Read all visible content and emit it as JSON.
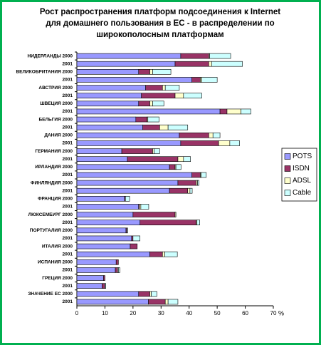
{
  "chart_data": {
    "type": "bar",
    "orientation": "horizontal",
    "stacked": true,
    "title": [
      "Рост распространения платформ подсоединения к Internet",
      "для домашнего пользования в ЕС - в распределении по",
      "широкополосным платформам"
    ],
    "xlabel": "%",
    "categories": [
      "НИДЕРЛАНДЫ 2000",
      "2001",
      "ВЕЛИКОБРИТАНИЯ 2000",
      "2001",
      "АВСТРИЯ 2000",
      "2001",
      "ШВЕЦИЯ 2000",
      "2001",
      "БЕЛЬГИЯ 2000",
      "2001",
      "ДАНИЯ 2000",
      "2001",
      "ГЕРМАНИЯ 2000",
      "2001",
      "ИРЛАНДИЯ 2000",
      "2001",
      "ФИНЛЯНДИЯ 2000",
      "2001",
      "ФРАНЦИЯ 2000",
      "2001",
      "ЛЮКСЕМБУРГ 2000",
      "2001",
      "ПОРТУГАЛИЯ 2000",
      "2001",
      "ИТАЛИЯ 2000",
      "2001",
      "ИСПАНИЯ 2000",
      "2001",
      "ГРЕЦИЯ 2000",
      "2001",
      "ЗНАЧЕНИЕ ЕС 2000",
      "2001"
    ],
    "series": [
      {
        "name": "POTS",
        "color": "#9999ff",
        "values": [
          37,
          35,
          22,
          41,
          24.5,
          23,
          22,
          51,
          21,
          23.5,
          36.5,
          37,
          16,
          18,
          33,
          41,
          36,
          33,
          17,
          22,
          20,
          22.5,
          17.5,
          19.5,
          19,
          26,
          14,
          13.7,
          9.5,
          9,
          22,
          25.5
        ]
      },
      {
        "name": "ISDN",
        "color": "#993366",
        "values": [
          10,
          12,
          4,
          3,
          6,
          12,
          4,
          2.5,
          4,
          6,
          10.5,
          13.5,
          11,
          18,
          2,
          3,
          6.5,
          6.5,
          0.3,
          0.3,
          15,
          20,
          0.3,
          0.5,
          2.5,
          4.5,
          0.8,
          0.8,
          0.5,
          1,
          4,
          6
        ]
      },
      {
        "name": "ADSL",
        "color": "#ffffcc",
        "values": [
          0.3,
          1,
          1,
          0.5,
          1,
          3,
          1,
          5,
          0.3,
          3,
          1.5,
          4,
          0.5,
          2,
          0.3,
          0.3,
          0.5,
          0.8,
          0,
          0.5,
          0.3,
          0.3,
          0,
          0,
          0,
          0.8,
          0,
          0.3,
          0,
          0,
          0.5,
          1
        ]
      },
      {
        "name": "Cable",
        "color": "#ccffff",
        "values": [
          7.5,
          11,
          6.5,
          5.5,
          5,
          6.5,
          4,
          3.5,
          4,
          7,
          2.5,
          3.5,
          2,
          2.5,
          1.8,
          1.8,
          0.5,
          0.8,
          1.5,
          2.8,
          0,
          1,
          0.3,
          2.5,
          0,
          4.5,
          0,
          0.5,
          0,
          0.3,
          2,
          3.5
        ]
      }
    ],
    "xlim": [
      0,
      70
    ],
    "xticks": [
      0,
      10,
      20,
      30,
      40,
      50,
      60,
      70
    ],
    "legend": "right"
  }
}
